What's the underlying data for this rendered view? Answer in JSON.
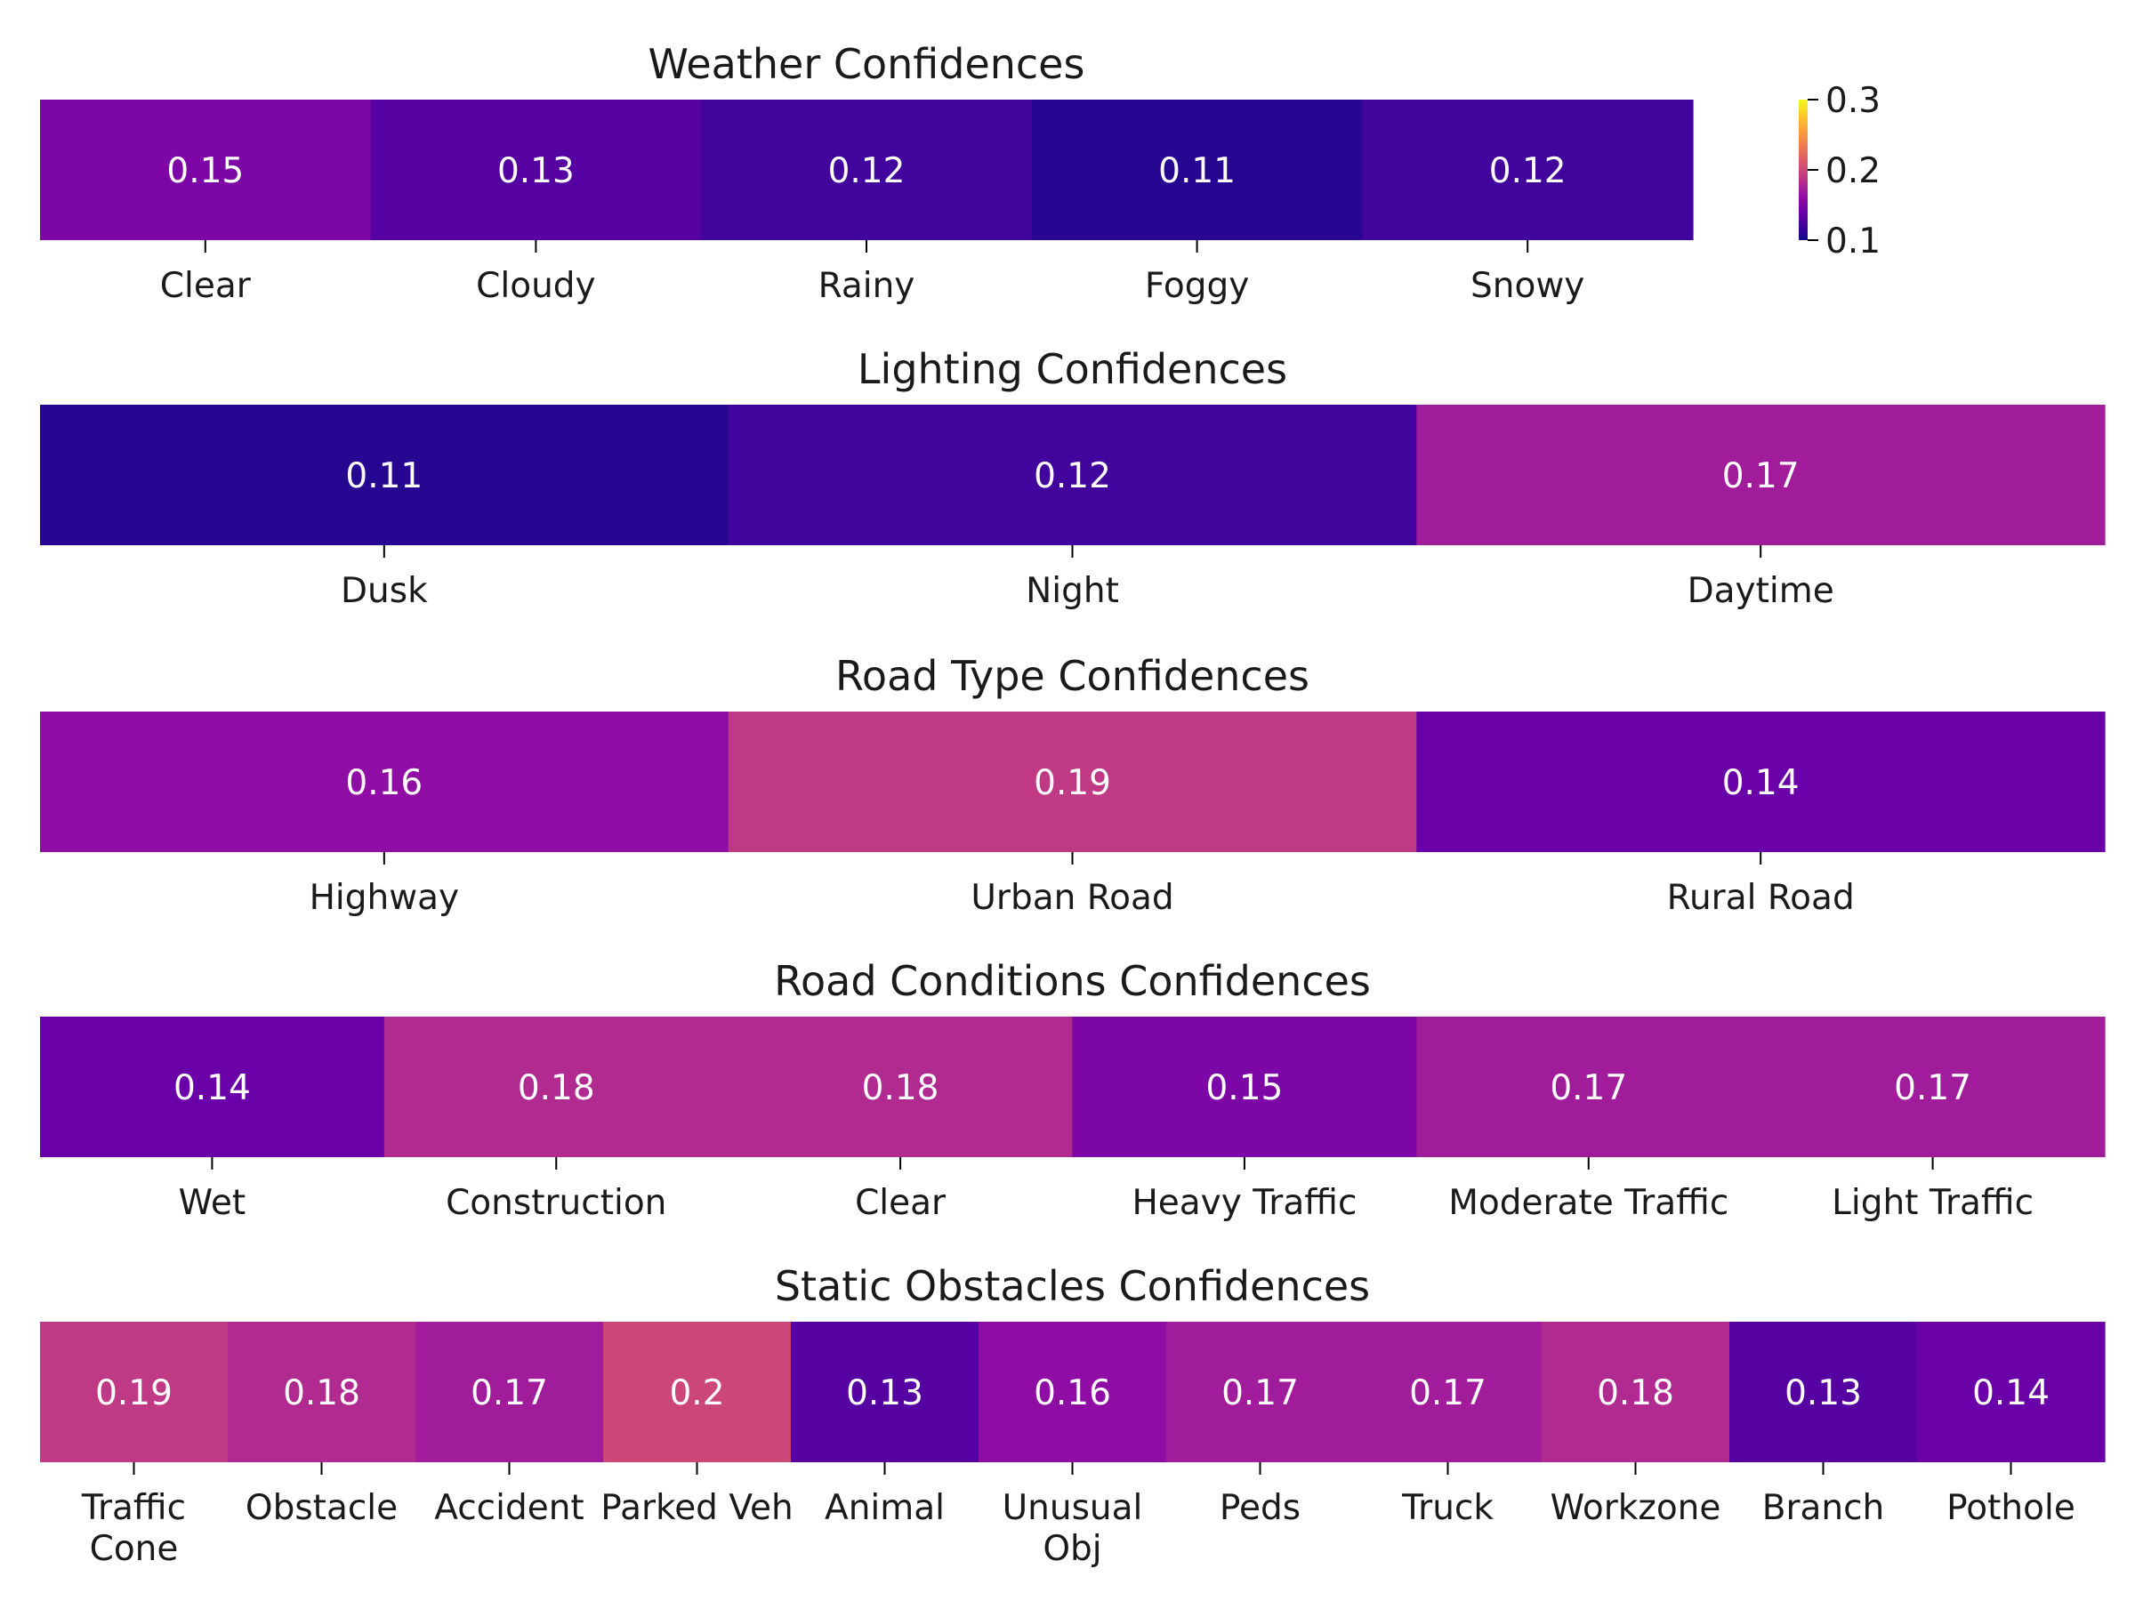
{
  "chart_data": [
    {
      "type": "heatmap",
      "title": "Weather Confidences",
      "categories": [
        "Clear",
        "Cloudy",
        "Rainy",
        "Foggy",
        "Snowy"
      ],
      "values": [
        0.15,
        0.13,
        0.12,
        0.11,
        0.12
      ],
      "value_labels": [
        "0.15",
        "0.13",
        "0.12",
        "0.11",
        "0.12"
      ]
    },
    {
      "type": "heatmap",
      "title": "Lighting Confidences",
      "categories": [
        "Dusk",
        "Night",
        "Daytime"
      ],
      "values": [
        0.11,
        0.12,
        0.17
      ],
      "value_labels": [
        "0.11",
        "0.12",
        "0.17"
      ]
    },
    {
      "type": "heatmap",
      "title": "Road Type Confidences",
      "categories": [
        "Highway",
        "Urban Road",
        "Rural Road"
      ],
      "values": [
        0.16,
        0.19,
        0.14
      ],
      "value_labels": [
        "0.16",
        "0.19",
        "0.14"
      ]
    },
    {
      "type": "heatmap",
      "title": "Road Conditions Confidences",
      "categories": [
        "Wet",
        "Construction",
        "Clear",
        "Heavy Traffic",
        "Moderate Traffic",
        "Light Traffic"
      ],
      "values": [
        0.14,
        0.18,
        0.18,
        0.15,
        0.17,
        0.17
      ],
      "value_labels": [
        "0.14",
        "0.18",
        "0.18",
        "0.15",
        "0.17",
        "0.17"
      ]
    },
    {
      "type": "heatmap",
      "title": "Static Obstacles Confidences",
      "categories": [
        "Traffic\nCone",
        "Obstacle",
        "Accident",
        "Parked Veh",
        "Animal",
        "Unusual\nObj",
        "Peds",
        "Truck",
        "Workzone",
        "Branch",
        "Pothole"
      ],
      "values": [
        0.19,
        0.18,
        0.17,
        0.2,
        0.13,
        0.16,
        0.17,
        0.17,
        0.18,
        0.13,
        0.14
      ],
      "value_labels": [
        "0.19",
        "0.18",
        "0.17",
        "0.2",
        "0.13",
        "0.16",
        "0.17",
        "0.17",
        "0.18",
        "0.13",
        "0.14"
      ]
    }
  ],
  "colorbar": {
    "colormap": "plasma",
    "range": [
      0.1,
      0.3
    ],
    "ticks": [
      0.1,
      0.2,
      0.3
    ],
    "tick_labels": [
      "0.1",
      "0.2",
      "0.3"
    ]
  }
}
